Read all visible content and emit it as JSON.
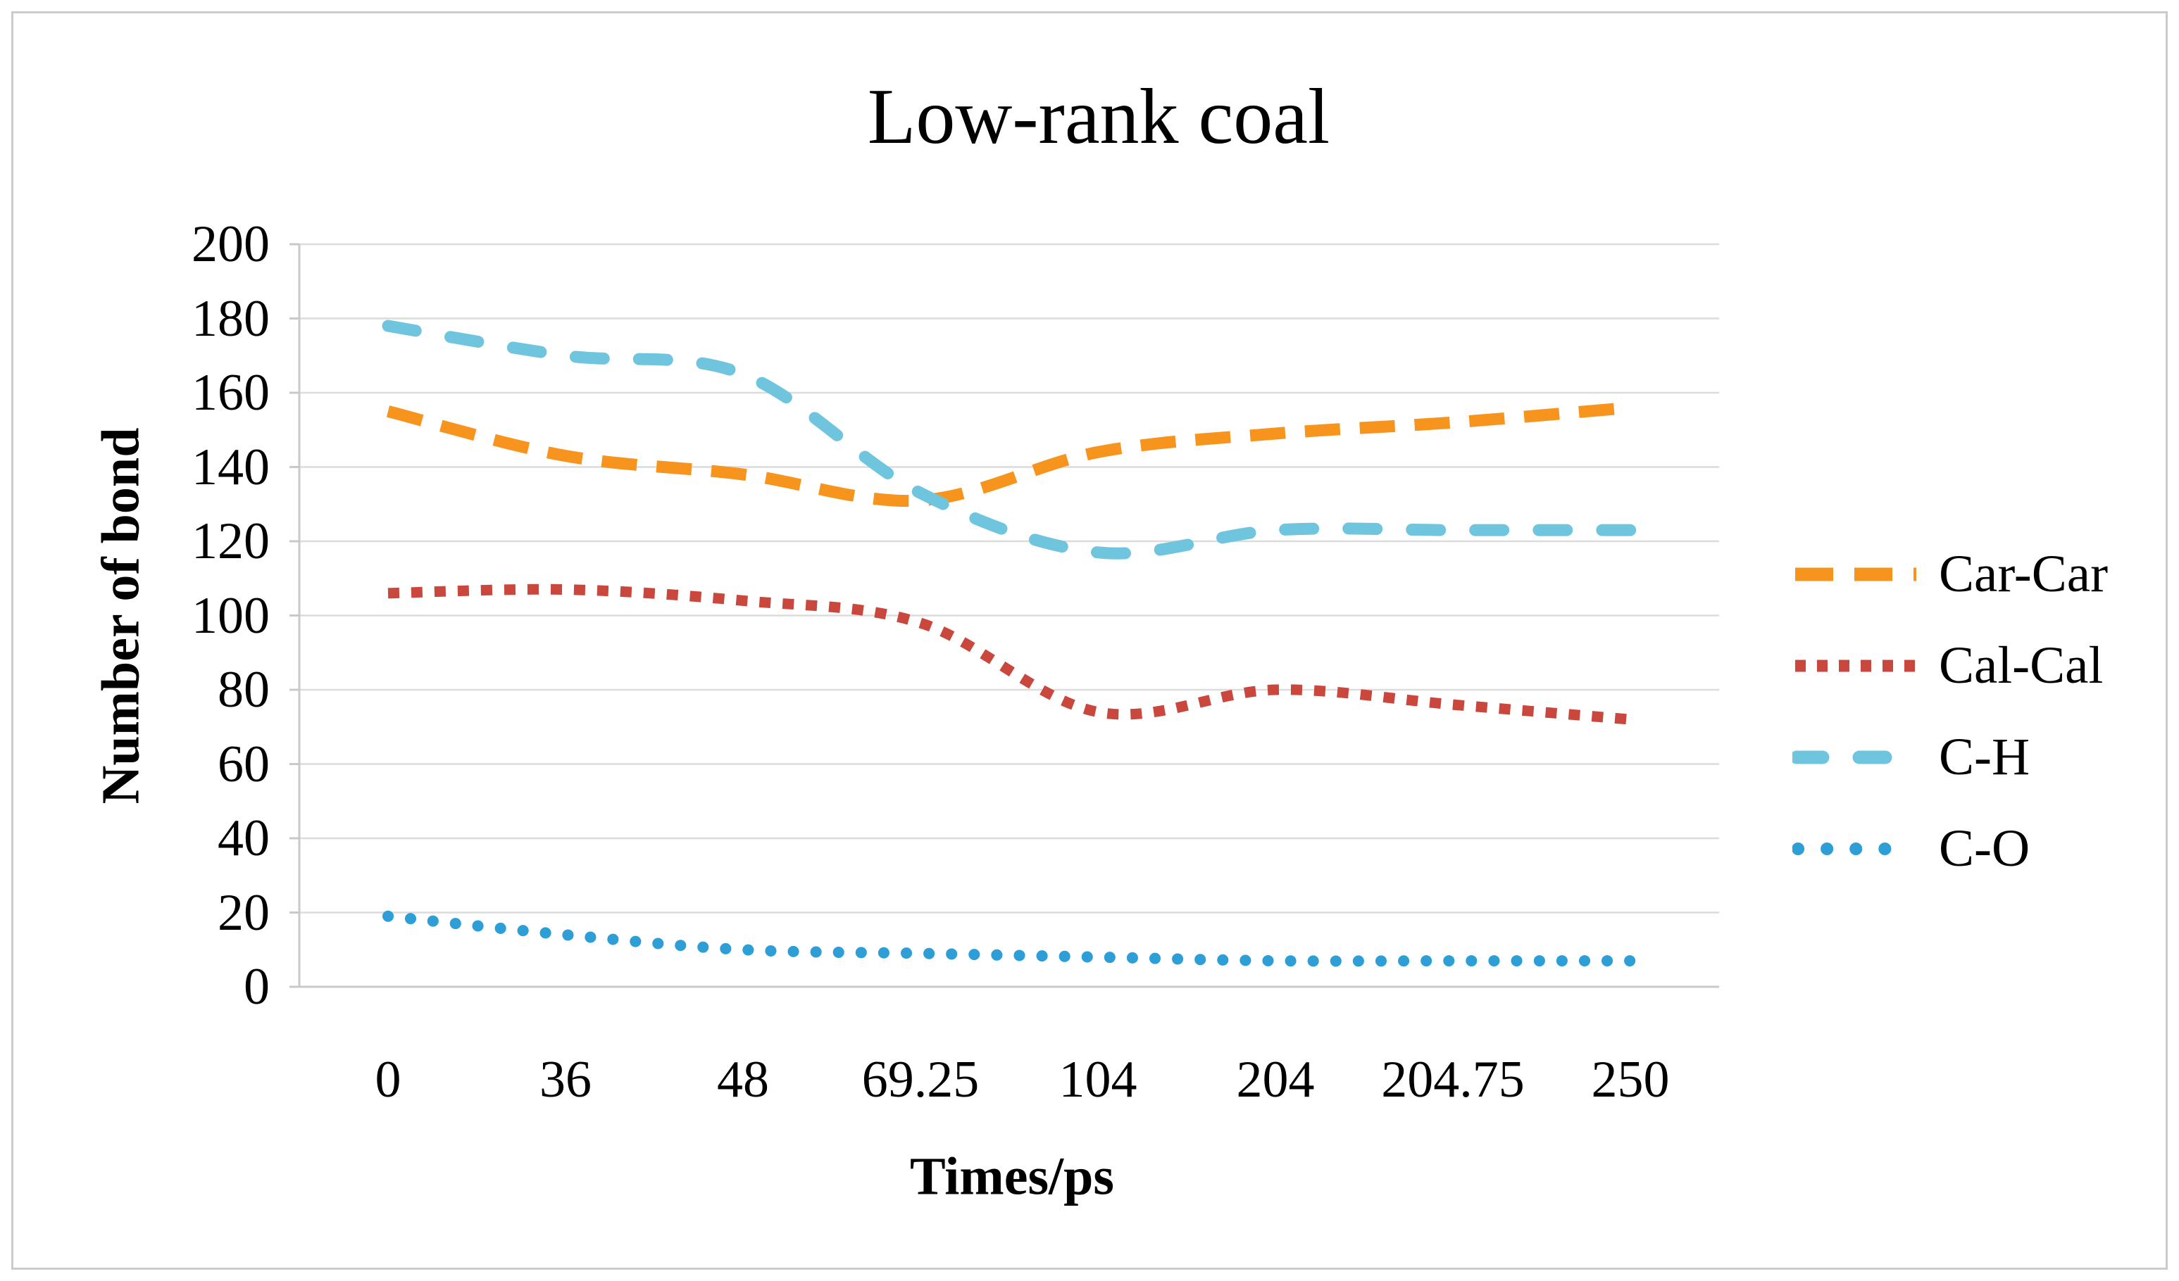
{
  "page": {
    "background": "#ffffff",
    "frame_color": "#cbcbcb"
  },
  "chart_data": {
    "type": "line",
    "title": "Low-rank coal",
    "xlabel": "Times/ps",
    "ylabel": "Number of bond",
    "categories": [
      "0",
      "36",
      "48",
      "69.25",
      "104",
      "204",
      "204.75",
      "250"
    ],
    "y_ticks": [
      200,
      180,
      160,
      140,
      120,
      100,
      80,
      60,
      40,
      20,
      0
    ],
    "ylim": [
      0,
      200
    ],
    "grid": "horizontal",
    "line_style": "smooth",
    "legend_position": "right",
    "colors": {
      "grid": "#dcdcdc",
      "axis": "#c9c9c9",
      "text": "#000000"
    },
    "series": [
      {
        "name": "Car-Car",
        "color": "#F7941E",
        "dash": "long-dash",
        "values": [
          155,
          143,
          138,
          131,
          144,
          149,
          152,
          156
        ]
      },
      {
        "name": "Cal-Cal",
        "color": "#C9473D",
        "dash": "square-dot",
        "values": [
          106,
          107,
          104,
          98,
          74,
          80,
          76,
          72
        ]
      },
      {
        "name": "C-H",
        "color": "#6EC5DD",
        "dash": "round-dash",
        "values": [
          178,
          170,
          165,
          133,
          117,
          123,
          123,
          123
        ]
      },
      {
        "name": "C-O",
        "color": "#2E9FD6",
        "dash": "round-dot",
        "values": [
          19,
          14,
          10,
          9,
          8,
          7,
          7,
          7
        ]
      }
    ]
  }
}
